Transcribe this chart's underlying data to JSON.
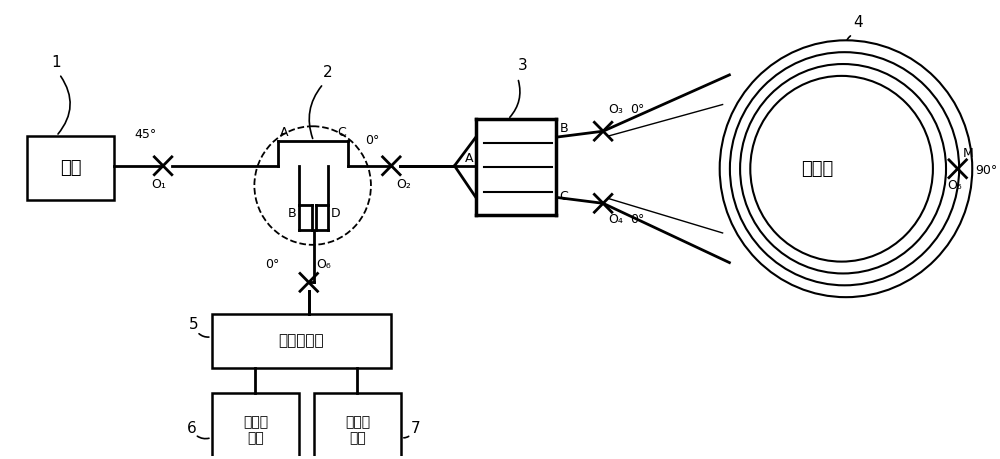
{
  "bg_color": "#ffffff",
  "line_color": "#000000",
  "text_color": "#000000",
  "fig_width": 10.0,
  "fig_height": 4.59,
  "guangyuan_label": "光源",
  "pbs_label": "偏振分束器",
  "det1_label": "第一探\n测器",
  "det2_label": "第二探\n测器",
  "fiber_label": "光纤环",
  "sub1": "1",
  "sub2": "2",
  "sub3": "3",
  "sub4": "4",
  "sub5": "5",
  "sub6": "6",
  "sub7": "7",
  "O1_label": "O₁",
  "O2_label": "O₂",
  "O3_label": "O₃",
  "O4_label": "O₄",
  "O5_label": "O₅",
  "O6_label": "O₆",
  "deg45": "45°",
  "deg0": "0°",
  "deg90": "90°",
  "label_A": "A",
  "label_B": "B",
  "label_C": "C",
  "label_D": "D",
  "label_M": "M"
}
